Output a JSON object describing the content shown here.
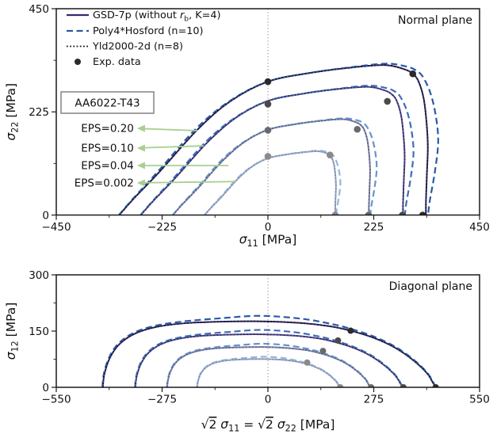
{
  "figure": {
    "material_label": "AA6022-T43",
    "plane_titles": [
      "Normal plane",
      "Diagonal plane"
    ]
  },
  "legend": {
    "items": [
      {
        "id": "gsd",
        "style": "solid",
        "color": "#352a6e",
        "segments": [
          {
            "t": "GSD-7p (without "
          },
          {
            "t": "r",
            "italic": true
          },
          {
            "t": "b",
            "sub": true
          },
          {
            "t": ", K=4)"
          }
        ]
      },
      {
        "id": "poly4",
        "style": "dashed",
        "color": "#2a5aa6",
        "segments": [
          {
            "t": "Poly4*Hosford (n=10)"
          }
        ]
      },
      {
        "id": "yld",
        "style": "dotted",
        "color": "#15151f",
        "segments": [
          {
            "t": "Yld2000-2d (n=8)"
          }
        ]
      },
      {
        "id": "exp",
        "style": "marker",
        "color": "#2b2b2b",
        "segments": [
          {
            "t": "Exp. data"
          }
        ]
      }
    ]
  },
  "eps_annotations": [
    {
      "label": "EPS=0.20",
      "text_right_x": -285,
      "y": 189,
      "tip": [
        -150,
        184
      ]
    },
    {
      "label": "EPS=0.10",
      "text_right_x": -285,
      "y": 146,
      "tip": [
        -136,
        151
      ]
    },
    {
      "label": "EPS=0.04",
      "text_right_x": -285,
      "y": 108,
      "tip": [
        -84,
        108
      ]
    },
    {
      "label": "EPS=0.002",
      "text_right_x": -285,
      "y": 70,
      "tip": [
        -67,
        73
      ]
    }
  ],
  "chart_data": {
    "type": "line",
    "description": "Yield surfaces of AA6022-T43 at four plastic strain levels, three models plus experimental data",
    "series_colors": {
      "solid": [
        "#352a6e",
        "#54469b",
        "#7e81ac",
        "#9aa5c3"
      ],
      "dashed": [
        "#2a5aa6",
        "#3d6fb7",
        "#6694cc",
        "#93b6dc"
      ],
      "dotted": [
        "#15151f",
        "#2c2c44",
        "#5a5e78",
        "#828ba3"
      ],
      "marker": [
        "#2b2b2b",
        "#4a4a4a",
        "#696969",
        "#8a8a8a"
      ]
    },
    "levels": [
      {
        "eps": "0.20",
        "top_scale": 1.0,
        "bottom_scale": 1.0,
        "exp_top": [
          [
            329,
            0
          ],
          [
            308,
            308
          ],
          [
            0,
            291
          ]
        ],
        "exp_bottom": [
          [
            436,
            0
          ],
          [
            215,
            151
          ]
        ]
      },
      {
        "eps": "0.10",
        "top_scale": 0.855,
        "bottom_scale": 0.803,
        "exp_top": [
          [
            286,
            0
          ],
          [
            254,
            248
          ],
          [
            0,
            242
          ]
        ],
        "exp_bottom": [
          [
            352,
            0
          ],
          [
            182,
            125
          ]
        ]
      },
      {
        "eps": "0.04",
        "top_scale": 0.639,
        "bottom_scale": 0.61,
        "exp_top": [
          [
            214,
            0
          ],
          [
            190,
            187
          ],
          [
            0,
            185
          ]
        ],
        "exp_bottom": [
          [
            268,
            0
          ],
          [
            143,
            97
          ]
        ]
      },
      {
        "eps": "0.002",
        "top_scale": 0.4255,
        "bottom_scale": 0.428,
        "exp_top": [
          [
            143,
            0
          ],
          [
            132,
            131
          ],
          [
            0,
            128
          ]
        ],
        "exp_bottom": [
          [
            188,
            0
          ],
          [
            102,
            66
          ]
        ]
      }
    ],
    "plots": [
      {
        "id": "normal",
        "title": "Normal plane",
        "xlim": [
          -450,
          450
        ],
        "ylim": [
          0,
          450
        ],
        "xticks": [
          -450,
          -225,
          0,
          225,
          450
        ],
        "xminor": [
          -337.5,
          -112.5,
          112.5,
          337.5
        ],
        "yticks": [
          0,
          225,
          450
        ],
        "yminor": [
          112.5,
          337.5
        ],
        "xlabel": [
          {
            "t": "σ",
            "italic": true
          },
          {
            "t": "11",
            "sub": true
          },
          {
            "t": " [MPa]"
          }
        ],
        "ylabel": [
          {
            "t": "σ",
            "italic": true
          },
          {
            "t": "22",
            "sub": true
          },
          {
            "t": " [MPa]"
          }
        ],
        "zero_line": true,
        "scale_key": "top_scale",
        "exp_key": "exp_top",
        "base_curve": [
          [
            -316,
            0
          ],
          [
            -286,
            35
          ],
          [
            -230,
            95
          ],
          [
            -150,
            186
          ],
          [
            -80,
            248
          ],
          [
            0,
            291
          ],
          [
            90,
            310
          ],
          [
            180,
            322
          ],
          [
            250,
            327
          ],
          [
            290,
            318
          ],
          [
            308,
            308
          ],
          [
            320,
            292
          ],
          [
            331,
            255
          ],
          [
            337,
            205
          ],
          [
            340,
            150
          ],
          [
            338,
            90
          ],
          [
            336,
            30
          ],
          [
            336,
            0
          ]
        ],
        "dashed_bumps": [
          [
            25,
            20,
            0.065
          ],
          [
            140,
            28,
            0.018
          ]
        ]
      },
      {
        "id": "diagonal",
        "title": "Diagonal plane",
        "xlim": [
          -550,
          550
        ],
        "ylim": [
          0,
          300
        ],
        "xticks": [
          -550,
          -275,
          0,
          275,
          550
        ],
        "xminor": [
          -412.5,
          -137.5,
          137.5,
          412.5
        ],
        "yticks": [
          0,
          150,
          300
        ],
        "yminor": [
          75,
          225
        ],
        "xlabel": [
          {
            "t": "√"
          },
          {
            "t": "2",
            "overline": true
          },
          {
            "t": " σ",
            "italic": true
          },
          {
            "t": "11",
            "sub": true
          },
          {
            "t": " = √"
          },
          {
            "t": "2",
            "overline": true
          },
          {
            "t": " σ",
            "italic": true
          },
          {
            "t": "22",
            "sub": true
          },
          {
            "t": " [MPa]"
          }
        ],
        "ylabel": [
          {
            "t": "σ",
            "italic": true
          },
          {
            "t": "12",
            "sub": true
          },
          {
            "t": " [MPa]"
          }
        ],
        "zero_line": true,
        "scale_key": "bottom_scale",
        "exp_key": "exp_bottom",
        "base_curve": [
          [
            -429,
            0
          ],
          [
            -425,
            35
          ],
          [
            -411,
            78
          ],
          [
            -386,
            115
          ],
          [
            -346,
            143
          ],
          [
            -290,
            161
          ],
          [
            -215,
            171
          ],
          [
            -120,
            175
          ],
          [
            -20,
            176
          ],
          [
            80,
            172
          ],
          [
            160,
            163
          ],
          [
            215,
            151
          ],
          [
            275,
            132
          ],
          [
            330,
            106
          ],
          [
            378,
            72
          ],
          [
            413,
            38
          ],
          [
            429,
            12
          ],
          [
            436,
            0
          ]
        ],
        "dashed_bumps": [
          [
            90,
            48,
            0.085
          ]
        ]
      }
    ]
  }
}
